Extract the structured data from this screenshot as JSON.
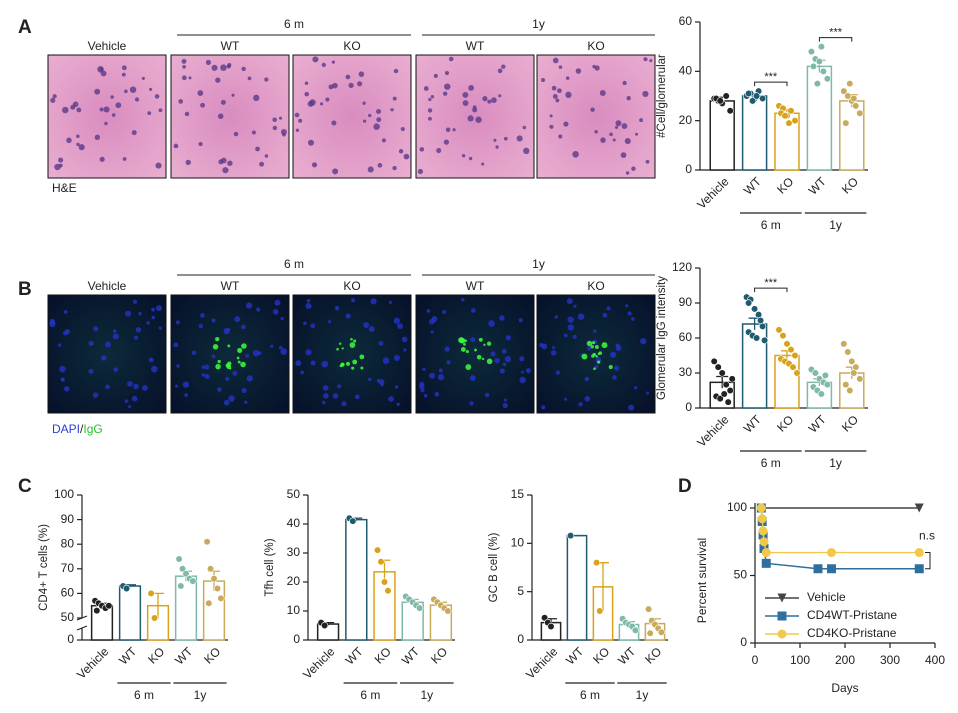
{
  "panel_labels": [
    "A",
    "B",
    "C",
    "D"
  ],
  "image_panels": [
    {
      "stain": "he",
      "headers": [
        "Vehicle",
        "WT",
        "KO",
        "WT",
        "KO"
      ],
      "groups": [
        null,
        "6 m",
        "6 m",
        "1y",
        "1y"
      ],
      "caption": [
        {
          "text": "H&E",
          "color": "#222222"
        }
      ]
    },
    {
      "stain": "if",
      "headers": [
        "Vehicle",
        "WT",
        "KO",
        "WT",
        "KO"
      ],
      "groups": [
        null,
        "6 m",
        "6 m",
        "1y",
        "1y"
      ],
      "caption": [
        {
          "text": "DAPI",
          "color": "#2b3fd6"
        },
        {
          "text": "/",
          "color": "#222222"
        },
        {
          "text": "IgG",
          "color": "#2fbf2f"
        }
      ]
    }
  ],
  "chart_data": [
    {
      "type": "bar",
      "ylabel": "#Cell/glomerular",
      "categories": [
        "Vehicle",
        "WT",
        "KO",
        "WT",
        "KO"
      ],
      "group_labels": [
        null,
        "6 m",
        "6 m",
        "1y",
        "1y"
      ],
      "colors": [
        "#222222",
        "#1f5a6e",
        "#d9a21b",
        "#7fb9a9",
        "#c9aa5c"
      ],
      "values": [
        28,
        30,
        23,
        42,
        28
      ],
      "errors": [
        1.5,
        1,
        1.5,
        2.5,
        2.5
      ],
      "points": [
        [
          29,
          28,
          27,
          30,
          24,
          29,
          28
        ],
        [
          30,
          31,
          29,
          32,
          29,
          31,
          28,
          30
        ],
        [
          26,
          25,
          22,
          24,
          20,
          23,
          22,
          19
        ],
        [
          48,
          45,
          44,
          40,
          37,
          42,
          35,
          50
        ],
        [
          32,
          30,
          28,
          26,
          23,
          19,
          35,
          29
        ]
      ],
      "ylim": [
        0,
        60
      ],
      "yticks": [
        0,
        20,
        40,
        60
      ],
      "significance": [
        {
          "label": "***",
          "from": 1,
          "to": 2
        },
        {
          "label": "***",
          "from": 3,
          "to": 4
        }
      ]
    },
    {
      "type": "bar",
      "ylabel": "Glomerular IgG intensity",
      "categories": [
        "Vehicle",
        "WT",
        "KO",
        "WT",
        "KO"
      ],
      "group_labels": [
        null,
        "6 m",
        "6 m",
        "1y",
        "1y"
      ],
      "colors": [
        "#222222",
        "#1f5a6e",
        "#d9a21b",
        "#7fb9a9",
        "#c9aa5c"
      ],
      "values": [
        22,
        72,
        45,
        22,
        30
      ],
      "errors": [
        5,
        5,
        4,
        3,
        5
      ],
      "points": [
        [
          40,
          35,
          30,
          20,
          15,
          10,
          8,
          12,
          5,
          25
        ],
        [
          95,
          93,
          85,
          80,
          70,
          65,
          62,
          60,
          75,
          58,
          90
        ],
        [
          67,
          62,
          55,
          50,
          45,
          42,
          40,
          38,
          35,
          30
        ],
        [
          33,
          30,
          25,
          22,
          20,
          18,
          15,
          12,
          28
        ],
        [
          55,
          48,
          40,
          35,
          25,
          20,
          15,
          30
        ]
      ],
      "ylim": [
        0,
        120
      ],
      "yticks": [
        0,
        30,
        60,
        90,
        120
      ],
      "significance": [
        {
          "label": "***",
          "from": 1,
          "to": 2
        }
      ]
    },
    {
      "type": "bar",
      "ylabel": "CD4+ T cells (%)",
      "categories": [
        "Vehicle",
        "WT",
        "KO",
        "WT",
        "KO"
      ],
      "group_labels": [
        null,
        "6 m",
        "6 m",
        "1y",
        "1y"
      ],
      "colors": [
        "#222222",
        "#1f5a6e",
        "#d9a21b",
        "#7fb9a9",
        "#c9aa5c"
      ],
      "values": [
        55,
        63,
        55,
        67,
        65
      ],
      "errors": [
        1,
        0.5,
        5,
        2,
        4
      ],
      "points": [
        [
          57,
          56,
          55,
          54,
          55,
          53
        ],
        [
          63,
          62
        ],
        [
          60,
          50
        ],
        [
          74,
          70,
          68,
          66,
          65,
          63
        ],
        [
          81,
          70,
          66,
          62,
          58,
          56
        ]
      ],
      "ylim": [
        0,
        100
      ],
      "yticks": [
        0,
        50,
        60,
        70,
        80,
        90,
        100
      ],
      "axis_break": [
        0,
        50
      ]
    },
    {
      "type": "bar",
      "ylabel": "Tfh cell (%)",
      "categories": [
        "Vehicle",
        "WT",
        "KO",
        "WT",
        "KO"
      ],
      "group_labels": [
        null,
        "6 m",
        "6 m",
        "1y",
        "1y"
      ],
      "colors": [
        "#222222",
        "#1f5a6e",
        "#d9a21b",
        "#7fb9a9",
        "#c9aa5c"
      ],
      "values": [
        5.5,
        41.5,
        23.5,
        13,
        12
      ],
      "errors": [
        0.5,
        0.5,
        4,
        1,
        1
      ],
      "points": [
        [
          6,
          5
        ],
        [
          42,
          41
        ],
        [
          31,
          27,
          20,
          17
        ],
        [
          15,
          14,
          13,
          12,
          11
        ],
        [
          14,
          13,
          12,
          11,
          10
        ]
      ],
      "ylim": [
        0,
        50
      ],
      "yticks": [
        0,
        10,
        20,
        30,
        40,
        50
      ]
    },
    {
      "type": "bar",
      "ylabel": "GC B cell (%)",
      "categories": [
        "Vehicle",
        "WT",
        "KO",
        "WT",
        "KO"
      ],
      "group_labels": [
        null,
        "6 m",
        "6 m",
        "1y",
        "1y"
      ],
      "colors": [
        "#222222",
        "#1f5a6e",
        "#d9a21b",
        "#7fb9a9",
        "#c9aa5c"
      ],
      "values": [
        1.8,
        10.8,
        5.5,
        1.6,
        1.7
      ],
      "errors": [
        0.4,
        0,
        2.5,
        0.3,
        0.5
      ],
      "points": [
        [
          2.3,
          1.8,
          1.4
        ],
        [
          10.8
        ],
        [
          8,
          3
        ],
        [
          2.2,
          1.8,
          1.6,
          1.4,
          1.0
        ],
        [
          3.2,
          2.0,
          1.6,
          1.2,
          0.8,
          0.7
        ]
      ],
      "ylim": [
        0,
        15
      ],
      "yticks": [
        0,
        5,
        10,
        15
      ]
    },
    {
      "type": "line",
      "ylabel": "Percent survival",
      "xlabel": "Days",
      "annotation": "n.s",
      "xlim": [
        0,
        400
      ],
      "xticks": [
        0,
        100,
        200,
        300,
        400
      ],
      "ylim": [
        0,
        100
      ],
      "yticks": [
        0,
        50,
        100
      ],
      "legend": "bottom-left",
      "series": [
        {
          "name": "Vehicle",
          "color": "#444444",
          "marker": "triangle",
          "x": [
            14,
            365
          ],
          "y": [
            100,
            100
          ]
        },
        {
          "name": "CD4WT-Pristane",
          "color": "#2f6f9f",
          "marker": "square",
          "x": [
            14,
            16,
            18,
            20,
            25,
            140,
            170,
            365
          ],
          "y": [
            100,
            90,
            80,
            70,
            59,
            55,
            55,
            55
          ]
        },
        {
          "name": "CD4KO-Pristane",
          "color": "#f2c84b",
          "marker": "circle",
          "x": [
            14,
            16,
            18,
            20,
            25,
            170,
            365
          ],
          "y": [
            100,
            92,
            83,
            75,
            67,
            67,
            67
          ]
        }
      ]
    }
  ]
}
